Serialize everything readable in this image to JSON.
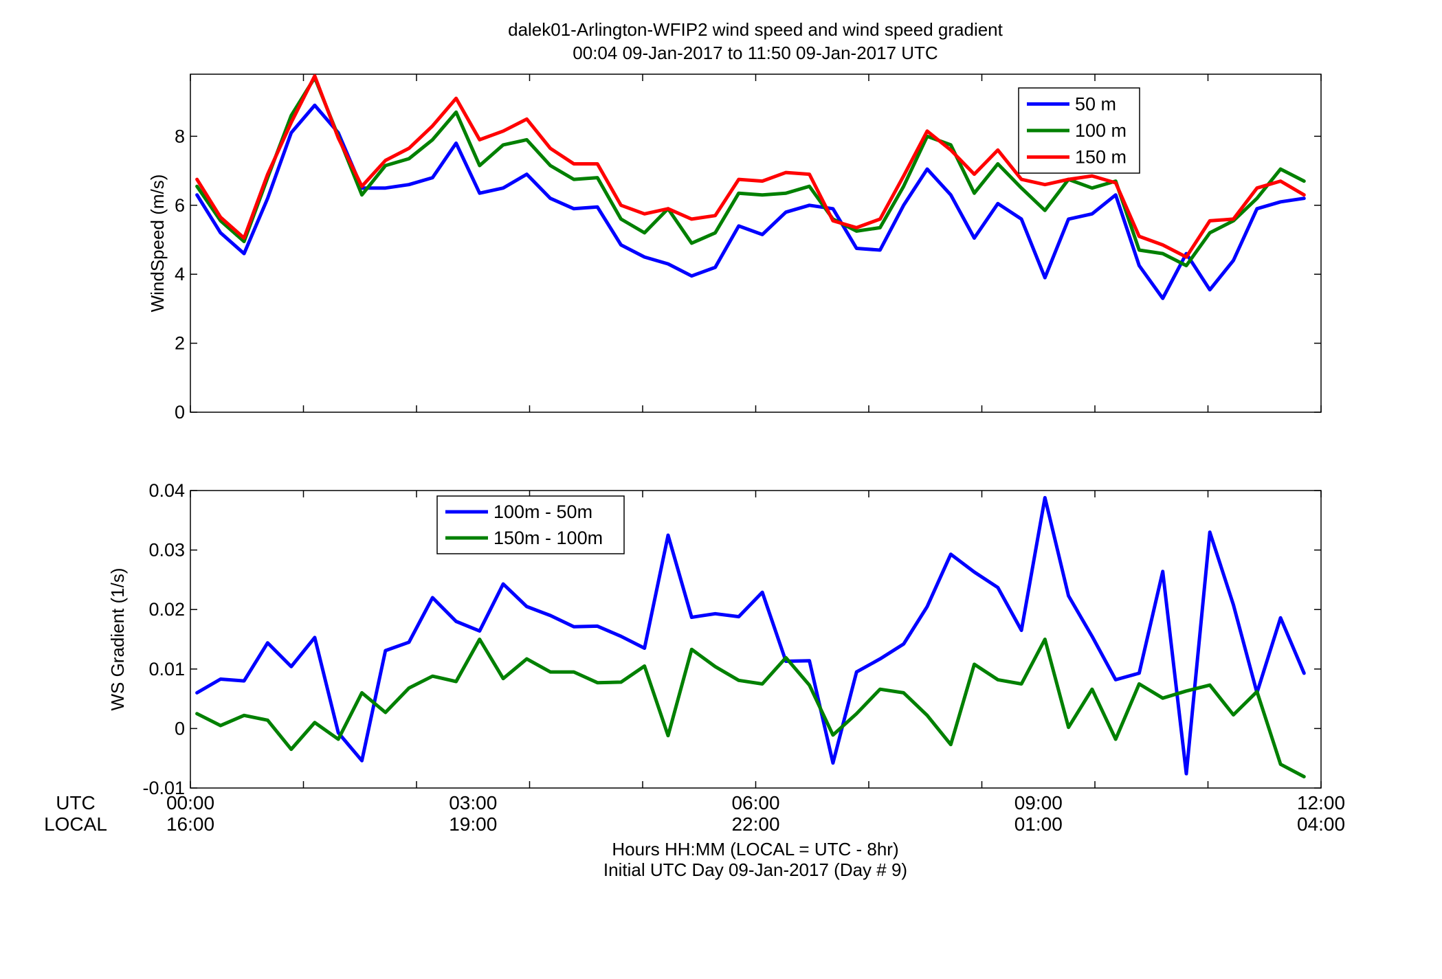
{
  "title": {
    "line1": "dalek01-Arlington-WFIP2  wind speed and wind speed gradient",
    "line2": "00:04 09-Jan-2017 to 11:50 09-Jan-2017  UTC"
  },
  "colors": {
    "blue": "#0000FF",
    "green": "#008000",
    "red": "#FF0000",
    "axis": "#000000"
  },
  "time_axis": {
    "utc_label": "UTC",
    "local_label": "LOCAL",
    "utc_ticks": [
      "00:00",
      "03:00",
      "06:00",
      "09:00",
      "12:00"
    ],
    "local_ticks": [
      "16:00",
      "19:00",
      "22:00",
      "01:00",
      "04:00"
    ],
    "xlabel_line1": "Hours HH:MM  (LOCAL = UTC - 8hr)",
    "xlabel_line2": "Initial UTC Day 09-Jan-2017 (Day # 9)"
  },
  "chart_data": [
    {
      "type": "line",
      "ylabel": "WindSpeed (m/s)",
      "xlim": [
        0,
        12
      ],
      "ylim": [
        0,
        9.8
      ],
      "yticks": [
        0,
        2,
        4,
        6,
        8
      ],
      "xtick_hours": [
        0,
        1.2,
        2.4,
        3.6,
        4.8,
        6,
        7.2,
        8.4,
        9.6,
        10.8,
        12
      ],
      "legend_position": "top-right",
      "x": [
        0.07,
        0.32,
        0.57,
        0.82,
        1.07,
        1.32,
        1.57,
        1.82,
        2.07,
        2.32,
        2.57,
        2.82,
        3.07,
        3.32,
        3.57,
        3.82,
        4.07,
        4.32,
        4.57,
        4.82,
        5.07,
        5.32,
        5.57,
        5.82,
        6.07,
        6.32,
        6.57,
        6.82,
        7.07,
        7.32,
        7.57,
        7.82,
        8.07,
        8.32,
        8.57,
        8.82,
        9.07,
        9.32,
        9.57,
        9.82,
        10.07,
        10.32,
        10.57,
        10.82,
        11.07,
        11.32,
        11.57,
        11.82
      ],
      "series": [
        {
          "name": "50 m",
          "color": "#0000FF",
          "values": [
            6.3,
            5.2,
            4.6,
            6.2,
            8.1,
            8.9,
            8.1,
            6.5,
            6.5,
            6.6,
            6.8,
            7.8,
            6.35,
            6.5,
            6.9,
            6.2,
            5.9,
            5.95,
            4.85,
            4.5,
            4.3,
            3.95,
            4.2,
            5.4,
            5.15,
            5.8,
            6.0,
            5.9,
            4.75,
            4.7,
            6.0,
            7.05,
            6.3,
            5.05,
            6.05,
            5.6,
            3.9,
            5.6,
            5.75,
            6.3,
            4.25,
            3.3,
            4.6,
            3.55,
            4.4,
            5.9,
            6.1,
            6.2
          ]
        },
        {
          "name": "100 m",
          "color": "#008000",
          "values": [
            6.55,
            5.55,
            4.95,
            6.8,
            8.6,
            9.7,
            8.0,
            6.3,
            7.15,
            7.35,
            7.9,
            8.7,
            7.15,
            7.75,
            7.9,
            7.15,
            6.75,
            6.8,
            5.6,
            5.2,
            5.9,
            4.9,
            5.2,
            6.35,
            6.3,
            6.35,
            6.55,
            5.6,
            5.25,
            5.35,
            6.55,
            8.0,
            7.75,
            6.35,
            7.2,
            6.5,
            5.85,
            6.75,
            6.5,
            6.7,
            4.7,
            4.6,
            4.25,
            5.2,
            5.55,
            6.2,
            7.05,
            6.7
          ]
        },
        {
          "name": "150 m",
          "color": "#FF0000",
          "values": [
            6.75,
            5.65,
            5.05,
            6.9,
            8.4,
            9.75,
            7.95,
            6.55,
            7.3,
            7.65,
            8.3,
            9.1,
            7.9,
            8.15,
            8.5,
            7.65,
            7.2,
            7.2,
            6.0,
            5.75,
            5.9,
            5.6,
            5.7,
            6.75,
            6.7,
            6.95,
            6.9,
            5.55,
            5.35,
            5.6,
            6.85,
            8.15,
            7.6,
            6.9,
            7.6,
            6.75,
            6.6,
            6.75,
            6.85,
            6.65,
            5.1,
            4.85,
            4.5,
            5.55,
            5.6,
            6.5,
            6.7,
            6.3
          ]
        }
      ]
    },
    {
      "type": "line",
      "ylabel": "WS Gradient (1/s)",
      "xlim": [
        0,
        12
      ],
      "ylim": [
        -0.01,
        0.04
      ],
      "yticks": [
        -0.01,
        0,
        0.01,
        0.02,
        0.03,
        0.04
      ],
      "ytick_labels": [
        "-0.01",
        "0",
        "0.01",
        "0.02",
        "0.03",
        "0.04"
      ],
      "xtick_hours": [
        0,
        1.2,
        2.4,
        3.6,
        4.8,
        6,
        7.2,
        8.4,
        9.6,
        10.8,
        12
      ],
      "legend_position": "top-left",
      "x": [
        0.07,
        0.32,
        0.57,
        0.82,
        1.07,
        1.32,
        1.57,
        1.82,
        2.07,
        2.32,
        2.57,
        2.82,
        3.07,
        3.32,
        3.57,
        3.82,
        4.07,
        4.32,
        4.57,
        4.82,
        5.07,
        5.32,
        5.57,
        5.82,
        6.07,
        6.32,
        6.57,
        6.82,
        7.07,
        7.32,
        7.57,
        7.82,
        8.07,
        8.32,
        8.57,
        8.82,
        9.07,
        9.32,
        9.57,
        9.82,
        10.07,
        10.32,
        10.57,
        10.82,
        11.07,
        11.32,
        11.57,
        11.82
      ],
      "series": [
        {
          "name": "100m - 50m",
          "color": "#0000FF",
          "values": [
            0.006,
            0.0083,
            0.008,
            0.0144,
            0.0104,
            0.0153,
            -0.0007,
            -0.0054,
            0.0131,
            0.0145,
            0.022,
            0.018,
            0.0164,
            0.0243,
            0.0205,
            0.019,
            0.0171,
            0.0172,
            0.0155,
            0.0135,
            0.0325,
            0.0187,
            0.0193,
            0.0188,
            0.0229,
            0.0113,
            0.0114,
            -0.0058,
            0.0095,
            0.0117,
            0.0142,
            0.0205,
            0.0293,
            0.0263,
            0.0237,
            0.0165,
            0.0388,
            0.0223,
            0.0155,
            0.0082,
            0.0093,
            0.0264,
            -0.0076,
            0.033,
            0.0208,
            0.006,
            0.0186,
            0.0093
          ]
        },
        {
          "name": "150m - 100m",
          "color": "#008000",
          "values": [
            0.0025,
            0.0005,
            0.0022,
            0.0014,
            -0.0035,
            0.001,
            -0.0018,
            0.006,
            0.0027,
            0.0068,
            0.0088,
            0.0079,
            0.015,
            0.0084,
            0.0117,
            0.0095,
            0.0095,
            0.0077,
            0.0078,
            0.0105,
            -0.0012,
            0.0133,
            0.0104,
            0.0081,
            0.0075,
            0.0119,
            0.0073,
            -0.0011,
            0.0025,
            0.0066,
            0.006,
            0.0022,
            -0.0027,
            0.0108,
            0.0082,
            0.0075,
            0.015,
            0.0002,
            0.0066,
            -0.0018,
            0.0075,
            0.0051,
            0.0063,
            0.0073,
            0.0023,
            0.0062,
            -0.006,
            -0.0081
          ]
        }
      ]
    }
  ]
}
